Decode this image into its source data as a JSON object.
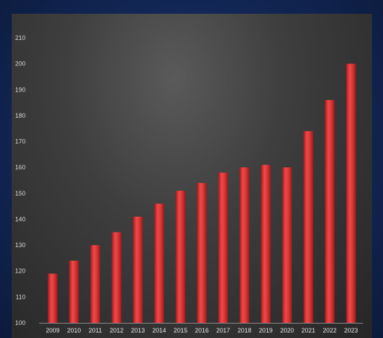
{
  "chart_data": {
    "type": "bar",
    "title": "",
    "xlabel": "",
    "ylabel": "",
    "categories": [
      "2009",
      "2010",
      "2011",
      "2012",
      "2013",
      "2014",
      "2015",
      "2016",
      "2017",
      "2018",
      "2019",
      "2020",
      "2021",
      "2022",
      "2023"
    ],
    "values": [
      119,
      124,
      130,
      135,
      141,
      146,
      151,
      154,
      158,
      160,
      161,
      160,
      174,
      186,
      200
    ],
    "ylim": [
      100,
      210
    ],
    "yticks": [
      100,
      110,
      120,
      130,
      140,
      150,
      160,
      170,
      180,
      190,
      200,
      210
    ],
    "grid": false,
    "bar_color": "#e03a3a",
    "panel_color": "#3a3a3a",
    "background_color": "#142a5c"
  }
}
